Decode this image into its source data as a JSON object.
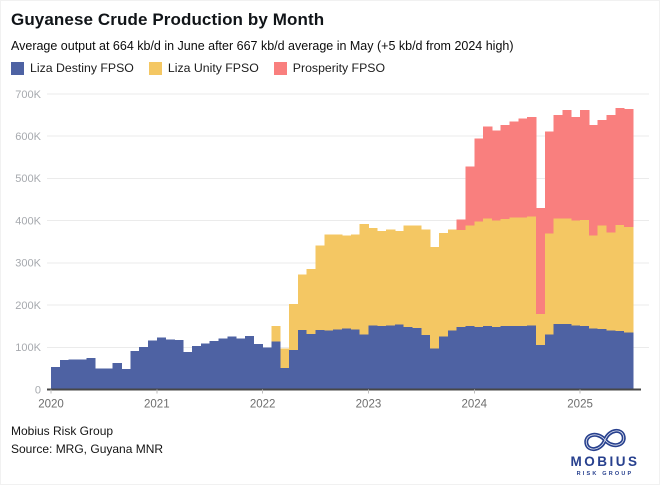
{
  "header": {
    "title": "Guyanese Crude Production by Month",
    "subtitle": "Average output at 664 kb/d in June after 667 kb/d average in May (+5 kb/d from 2024 high)"
  },
  "legend": [
    {
      "label": "Liza Destiny FPSO"
    },
    {
      "label": "Liza Unity FPSO"
    },
    {
      "label": "Prosperity FPSO"
    }
  ],
  "chart_data": {
    "type": "bar",
    "subtype": "stacked-monthly",
    "title": "Guyanese Crude Production by Month",
    "unit": "kb/d",
    "ylim": [
      0,
      700
    ],
    "yticks": [
      0,
      100,
      200,
      300,
      400,
      500,
      600,
      700
    ],
    "ytick_labels": [
      "0",
      "100K",
      "200K",
      "300K",
      "400K",
      "500K",
      "600K",
      "700K"
    ],
    "xtick_labels": [
      "2020",
      "2021",
      "2022",
      "2023",
      "2024",
      "2025"
    ],
    "xtick_month_index": [
      0,
      12,
      24,
      36,
      48,
      60
    ],
    "legend_position": "top-left",
    "grid": true,
    "categories": [
      "2020-01",
      "2020-02",
      "2020-03",
      "2020-04",
      "2020-05",
      "2020-06",
      "2020-07",
      "2020-08",
      "2020-09",
      "2020-10",
      "2020-11",
      "2020-12",
      "2021-01",
      "2021-02",
      "2021-03",
      "2021-04",
      "2021-05",
      "2021-06",
      "2021-07",
      "2021-08",
      "2021-09",
      "2021-10",
      "2021-11",
      "2021-12",
      "2022-01",
      "2022-02",
      "2022-03",
      "2022-04",
      "2022-05",
      "2022-06",
      "2022-07",
      "2022-08",
      "2022-09",
      "2022-10",
      "2022-11",
      "2022-12",
      "2023-01",
      "2023-02",
      "2023-03",
      "2023-04",
      "2023-05",
      "2023-06",
      "2023-07",
      "2023-08",
      "2023-09",
      "2023-10",
      "2023-11",
      "2023-12",
      "2024-01",
      "2024-02",
      "2024-03",
      "2024-04",
      "2024-05",
      "2024-06",
      "2024-07",
      "2024-08",
      "2024-09",
      "2024-10",
      "2024-11",
      "2024-12",
      "2025-01",
      "2025-02",
      "2025-03",
      "2025-04",
      "2025-05",
      "2025-06"
    ],
    "series": [
      {
        "name": "Liza Destiny FPSO",
        "color": "#4e62a3",
        "values": [
          53,
          70,
          71,
          71,
          75,
          50,
          50,
          63,
          48,
          91,
          101,
          116,
          123,
          118,
          117,
          89,
          103,
          109,
          115,
          121,
          125,
          121,
          127,
          108,
          100,
          114,
          51,
          94,
          141,
          132,
          141,
          140,
          142,
          145,
          142,
          130,
          152,
          150,
          152,
          154,
          148,
          146,
          129,
          97,
          125,
          140,
          148,
          150,
          148,
          150,
          148,
          150,
          151,
          150,
          152,
          105,
          130,
          155,
          155,
          152,
          150,
          145,
          143,
          140,
          138,
          135
        ]
      },
      {
        "name": "Liza Unity FPSO",
        "color": "#f4c763",
        "values": [
          0,
          0,
          0,
          0,
          0,
          0,
          0,
          0,
          0,
          0,
          0,
          0,
          0,
          0,
          0,
          0,
          0,
          0,
          0,
          0,
          0,
          0,
          0,
          0,
          0,
          37,
          46,
          108,
          132,
          153,
          200,
          227,
          225,
          220,
          225,
          262,
          231,
          226,
          227,
          222,
          240,
          242,
          250,
          240,
          246,
          239,
          230,
          238,
          250,
          255,
          252,
          254,
          256,
          257,
          258,
          74,
          240,
          250,
          250,
          248,
          252,
          220,
          245,
          232,
          252,
          250
        ]
      },
      {
        "name": "Prosperity FPSO",
        "color": "#f97f7e",
        "values": [
          0,
          0,
          0,
          0,
          0,
          0,
          0,
          0,
          0,
          0,
          0,
          0,
          0,
          0,
          0,
          0,
          0,
          0,
          0,
          0,
          0,
          0,
          0,
          0,
          0,
          0,
          0,
          0,
          0,
          0,
          0,
          0,
          0,
          0,
          0,
          0,
          0,
          0,
          0,
          0,
          0,
          0,
          0,
          0,
          0,
          0,
          25,
          140,
          197,
          218,
          214,
          222,
          228,
          235,
          235,
          251,
          241,
          245,
          257,
          245,
          260,
          262,
          250,
          278,
          277,
          279
        ]
      }
    ],
    "annotations": {
      "may_2025_avg": 667,
      "jun_2025_avg": 664,
      "high_2024": 662
    }
  },
  "footer": {
    "line1": "Mobius Risk Group",
    "line2": "Source: MRG, Guyana MNR"
  },
  "logo": {
    "name": "MOBIUS",
    "subtext": "RISK GROUP",
    "color": "#27408e"
  }
}
